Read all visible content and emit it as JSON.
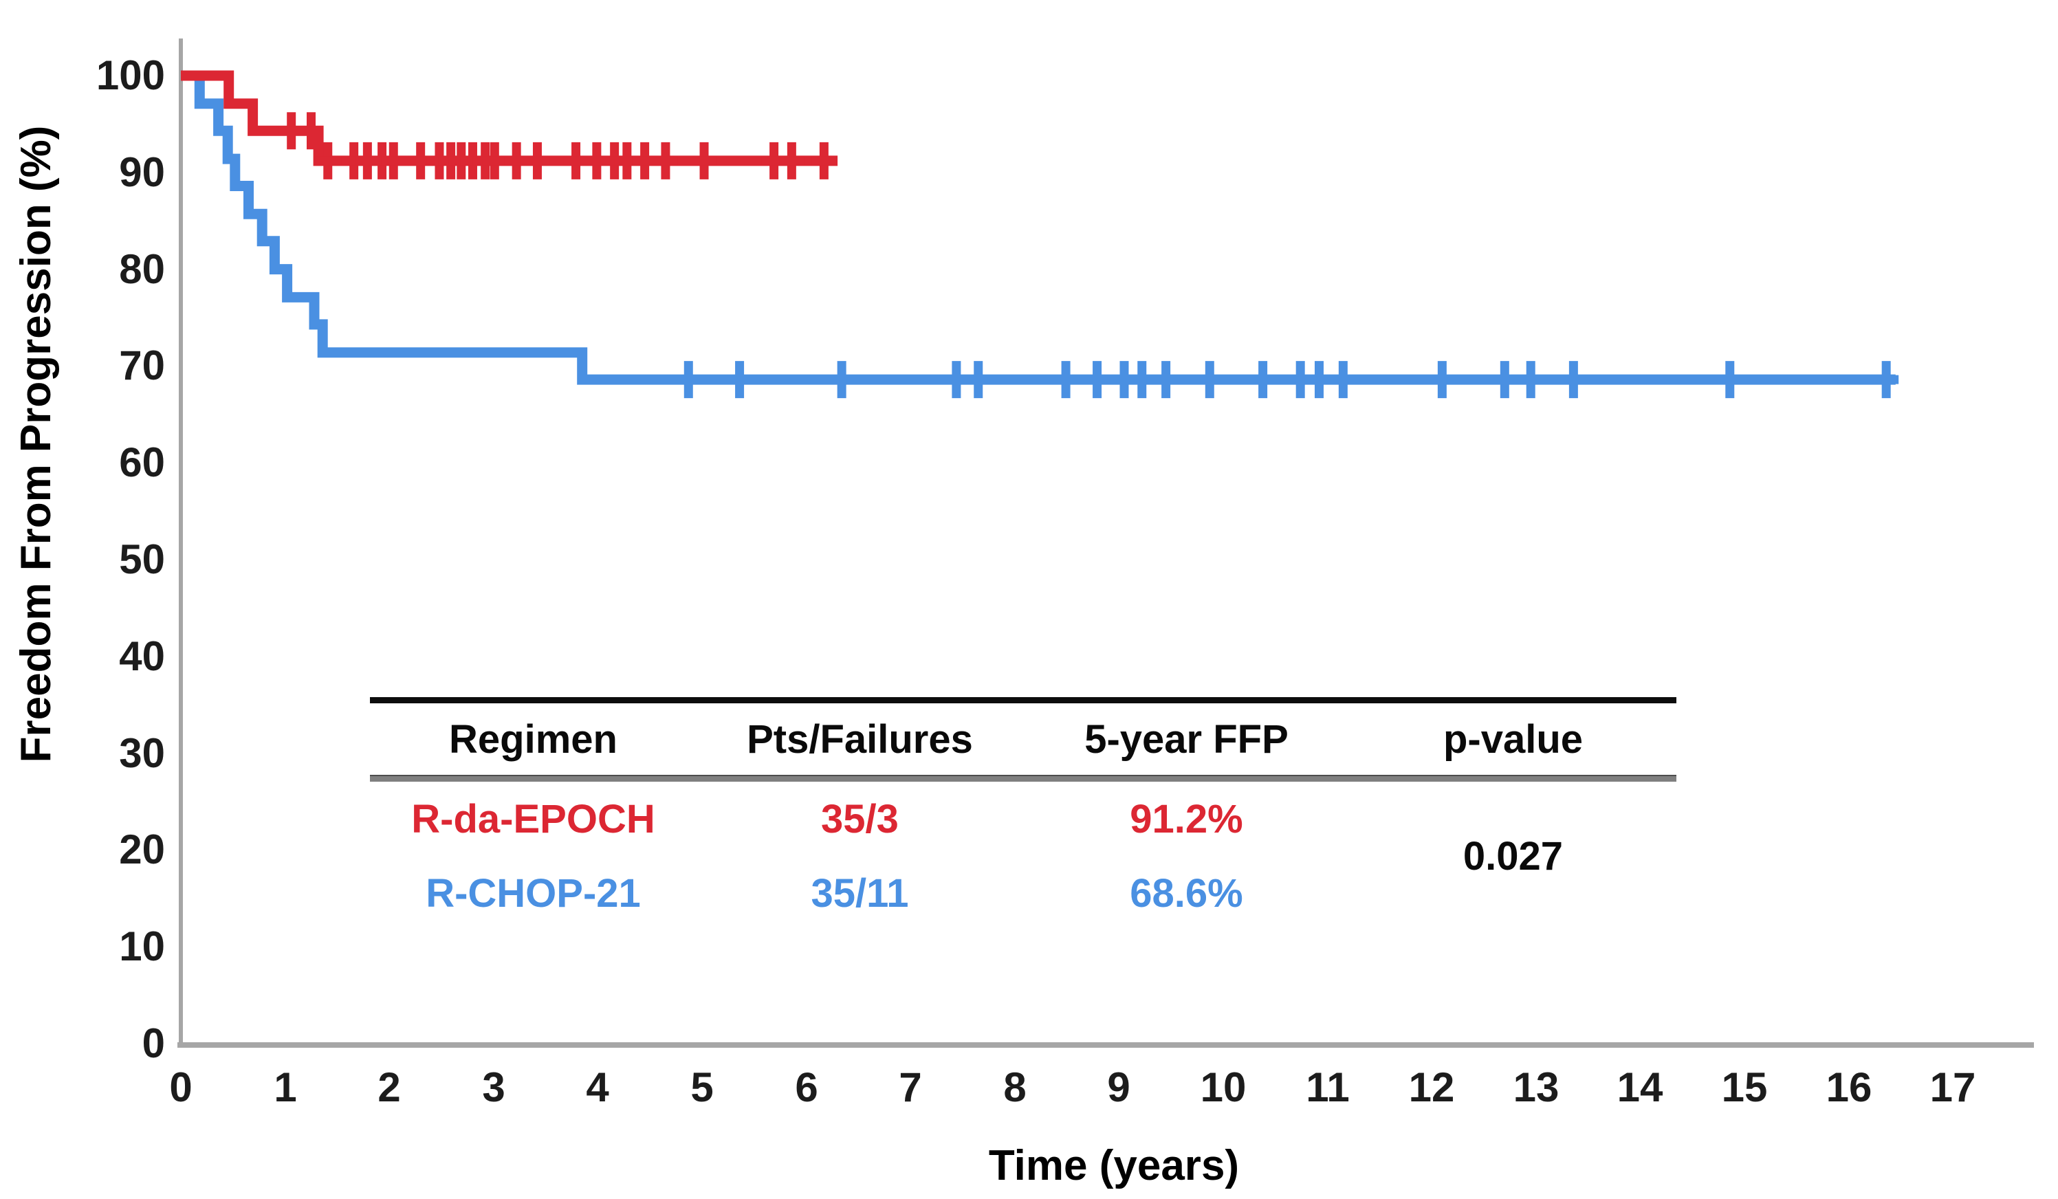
{
  "colors": {
    "red": "#DC2733",
    "blue": "#4A90E2",
    "axis": "#A6A6A6",
    "text": "#111111",
    "table_rule_top": "#0d0d0d",
    "table_rule_mid": "#7f7f7f"
  },
  "chart_data": {
    "type": "line",
    "subtype": "kaplan-meier-step",
    "title": "",
    "xlabel": "Time (years)",
    "ylabel": "Freedom From Progression (%)",
    "xlim": [
      0,
      17.6
    ],
    "ylim": [
      0,
      100
    ],
    "grid": false,
    "legend_position": "none (summary table inside plot)",
    "x_ticks": [
      0,
      1,
      2,
      3,
      4,
      5,
      6,
      7,
      8,
      9,
      10,
      11,
      12,
      13,
      14,
      15,
      16,
      17
    ],
    "y_ticks": [
      0,
      10,
      20,
      30,
      40,
      50,
      60,
      70,
      80,
      90,
      100
    ],
    "series": [
      {
        "name": "R-da-EPOCH",
        "color": "#DC2733",
        "steps": [
          [
            0,
            100
          ],
          [
            0.46,
            97.1
          ],
          [
            0.69,
            94.3
          ],
          [
            1.32,
            91.2
          ]
        ],
        "end": 6.3,
        "censors": [
          1.06,
          1.25,
          1.41,
          1.66,
          1.79,
          1.93,
          2.04,
          2.3,
          2.48,
          2.59,
          2.69,
          2.8,
          2.92,
          3.01,
          3.22,
          3.42,
          3.79,
          3.99,
          4.16,
          4.28,
          4.45,
          4.65,
          5.02,
          5.69,
          5.86,
          6.17
        ]
      },
      {
        "name": "R-CHOP-21",
        "color": "#4A90E2",
        "steps": [
          [
            0,
            100
          ],
          [
            0.18,
            97.1
          ],
          [
            0.36,
            94.3
          ],
          [
            0.45,
            91.4
          ],
          [
            0.52,
            88.6
          ],
          [
            0.65,
            85.7
          ],
          [
            0.78,
            82.9
          ],
          [
            0.9,
            80.0
          ],
          [
            1.02,
            77.1
          ],
          [
            1.28,
            74.3
          ],
          [
            1.36,
            71.4
          ],
          [
            3.85,
            68.6
          ]
        ],
        "end": 16.45,
        "censors": [
          4.87,
          5.36,
          6.34,
          7.44,
          7.65,
          8.49,
          8.79,
          9.05,
          9.22,
          9.45,
          9.87,
          10.38,
          10.74,
          10.92,
          11.15,
          12.1,
          12.7,
          12.95,
          13.36,
          14.86,
          16.36
        ]
      }
    ]
  },
  "table": {
    "headers": [
      "Regimen",
      "Pts/Failures",
      "5-year FFP",
      "p-value"
    ],
    "rows": [
      {
        "regimen": "R-da-EPOCH",
        "pts_failures": "35/3",
        "ffp": "91.2%",
        "color": "#DC2733"
      },
      {
        "regimen": "R-CHOP-21",
        "pts_failures": "35/11",
        "ffp": "68.6%",
        "color": "#4A90E2"
      }
    ],
    "p_value": "0.027"
  }
}
